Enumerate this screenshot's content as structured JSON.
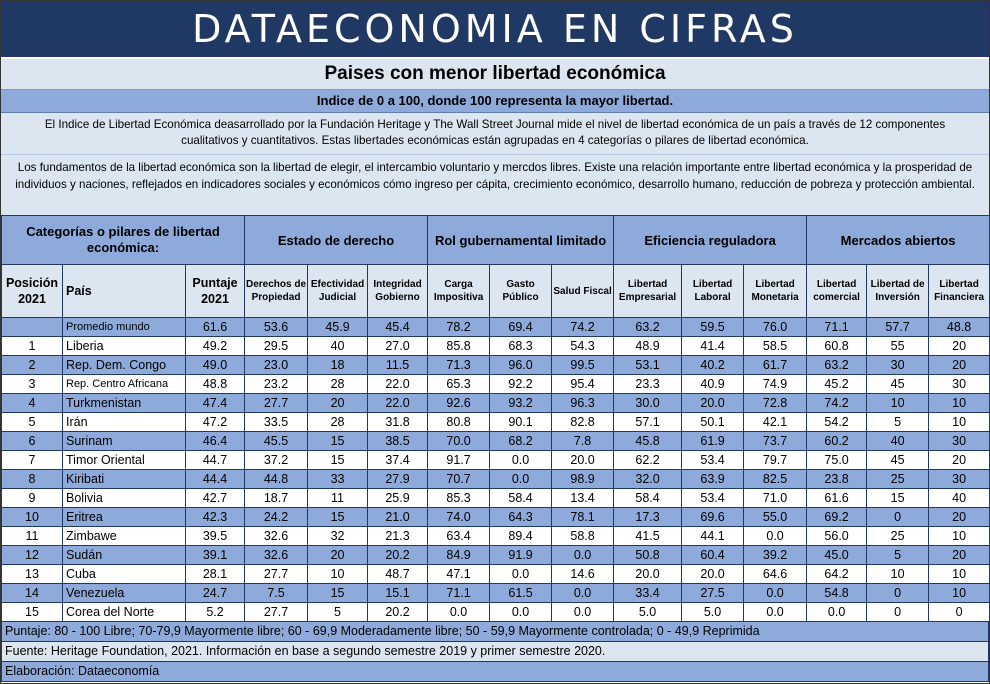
{
  "banner": "DATAECONOMIA EN CIFRAS",
  "title": "Paises con menor libertad económica",
  "subtitle": "Indice de 0 a 100, donde 100 representa la mayor libertad.",
  "paragraph1": "El Indice de Libertad Económica deasarrollado por la Fundación Heritage y The Wall Street Journal mide el nivel de libertad económica de un país a través de 12 componentes cualitativos y cuantitativos. Estas libertades económicas están agrupadas en 4 categorías o pilares de libertad económica.",
  "paragraph2": "Los fundamentos de la libertad económica son la libertad de elegir, el intercambio voluntario y mercdos libres. Existe una relación importante entre libertad económica y la prosperidad de individuos y naciones, reflejados en indicadores sociales y económicos cómo ingreso per cápita, crecimiento económico, desarrollo humano, reducción de pobreza y protección ambiental.",
  "table": {
    "group_headers": {
      "categories": "Categorías o pilares de libertad económica:",
      "rule_of_law": "Estado de derecho",
      "gov_size": "Rol gubernamental limitado",
      "reg_efficiency": "Eficiencia reguladora",
      "open_markets": "Mercados abiertos"
    },
    "columns": {
      "position": "Posición 2021",
      "country": "País",
      "score": "Puntaje 2021",
      "property_rights": "Derechos de Propiedad",
      "judicial": "Efectividad Judicial",
      "integrity": "Integridad Gobierno",
      "tax": "Carga Impositiva",
      "spending": "Gasto Público",
      "fiscal": "Salud Fiscal",
      "business": "Libertad Empresarial",
      "labor": "Libertad Laboral",
      "monetary": "Libertad Monetaria",
      "trade": "Libertad comercial",
      "investment": "Libertad de Inversión",
      "financial": "Libertad Financiera"
    },
    "rows": [
      [
        "",
        "Promedio mundo",
        "61.6",
        "53.6",
        "45.9",
        "45.4",
        "78.2",
        "69.4",
        "74.2",
        "63.2",
        "59.5",
        "76.0",
        "71.1",
        "57.7",
        "48.8"
      ],
      [
        "1",
        "Liberia",
        "49.2",
        "29.5",
        "40",
        "27.0",
        "85.8",
        "68.3",
        "54.3",
        "48.9",
        "41.4",
        "58.5",
        "60.8",
        "55",
        "20"
      ],
      [
        "2",
        "Rep. Dem. Congo",
        "49.0",
        "23.0",
        "18",
        "11.5",
        "71.3",
        "96.0",
        "99.5",
        "53.1",
        "40.2",
        "61.7",
        "63.2",
        "30",
        "20"
      ],
      [
        "3",
        "Rep. Centro Africana",
        "48.8",
        "23.2",
        "28",
        "22.0",
        "65.3",
        "92.2",
        "95.4",
        "23.3",
        "40.9",
        "74.9",
        "45.2",
        "45",
        "30"
      ],
      [
        "4",
        "Turkmenistan",
        "47.4",
        "27.7",
        "20",
        "22.0",
        "92.6",
        "93.2",
        "96.3",
        "30.0",
        "20.0",
        "72.8",
        "74.2",
        "10",
        "10"
      ],
      [
        "5",
        "Irán",
        "47.2",
        "33.5",
        "28",
        "31.8",
        "80.8",
        "90.1",
        "82.8",
        "57.1",
        "50.1",
        "42.1",
        "54.2",
        "5",
        "10"
      ],
      [
        "6",
        "Surinam",
        "46.4",
        "45.5",
        "15",
        "38.5",
        "70.0",
        "68.2",
        "7.8",
        "45.8",
        "61.9",
        "73.7",
        "60.2",
        "40",
        "30"
      ],
      [
        "7",
        "Timor Oriental",
        "44.7",
        "37.2",
        "15",
        "37.4",
        "91.7",
        "0.0",
        "20.0",
        "62.2",
        "53.4",
        "79.7",
        "75.0",
        "45",
        "20"
      ],
      [
        "8",
        "Kiribati",
        "44.4",
        "44.8",
        "33",
        "27.9",
        "70.7",
        "0.0",
        "98.9",
        "32.0",
        "63.9",
        "82.5",
        "23.8",
        "25",
        "30"
      ],
      [
        "9",
        "Bolivia",
        "42.7",
        "18.7",
        "11",
        "25.9",
        "85.3",
        "58.4",
        "13.4",
        "58.4",
        "53.4",
        "71.0",
        "61.6",
        "15",
        "40"
      ],
      [
        "10",
        "Eritrea",
        "42.3",
        "24.2",
        "15",
        "21.0",
        "74.0",
        "64.3",
        "78.1",
        "17.3",
        "69.6",
        "55.0",
        "69.2",
        "0",
        "20"
      ],
      [
        "11",
        "Zimbawe",
        "39.5",
        "32.6",
        "32",
        "21.3",
        "63.4",
        "89.4",
        "58.8",
        "41.5",
        "44.1",
        "0.0",
        "56.0",
        "25",
        "10"
      ],
      [
        "12",
        "Sudán",
        "39.1",
        "32.6",
        "20",
        "20.2",
        "84.9",
        "91.9",
        "0.0",
        "50.8",
        "60.4",
        "39.2",
        "45.0",
        "5",
        "20"
      ],
      [
        "13",
        "Cuba",
        "28.1",
        "27.7",
        "10",
        "48.7",
        "47.1",
        "0.0",
        "14.6",
        "20.0",
        "20.0",
        "64.6",
        "64.2",
        "10",
        "10"
      ],
      [
        "14",
        "Venezuela",
        "24.7",
        "7.5",
        "15",
        "15.1",
        "71.1",
        "61.5",
        "0.0",
        "33.4",
        "27.5",
        "0.0",
        "54.8",
        "0",
        "10"
      ],
      [
        "15",
        "Corea del Norte",
        "5.2",
        "27.7",
        "5",
        "20.2",
        "0.0",
        "0.0",
        "0.0",
        "5.0",
        "5.0",
        "0.0",
        "0.0",
        "0",
        "0"
      ]
    ]
  },
  "footer": {
    "scale": "Puntaje: 80 - 100 Libre; 70-79,9 Mayormente libre; 60 - 69,9 Moderadamente libre; 50 - 59,9 Mayormente controlada; 0 - 49,9 Reprimida",
    "source": "Fuente: Heritage Foundation, 2021. Información en base a segundo semestre 2019 y primer semestre 2020.",
    "credit": "Elaboración: Dataeconomía"
  },
  "colors": {
    "banner": "#1f3864",
    "band": "#8eaadb",
    "light": "#dce6f1"
  }
}
